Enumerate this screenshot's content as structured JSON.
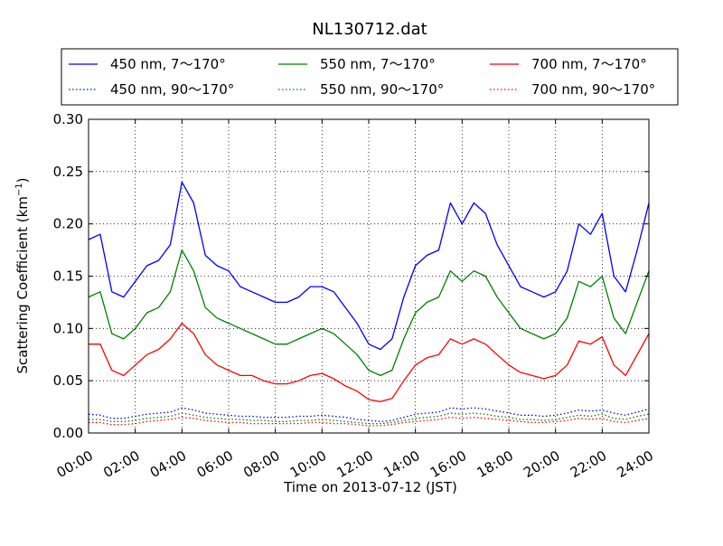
{
  "chart_data": {
    "type": "line",
    "title": "NL130712.dat",
    "xlabel": "Time on 2013-07-12 (JST)",
    "ylabel": "Scattering Coefficient (km",
    "ylabel_sup": "−1",
    "ylabel_end": ")",
    "xlim": [
      "00:00",
      "24:00"
    ],
    "ylim": [
      0.0,
      0.3
    ],
    "grid": true,
    "legend_position": "top",
    "xticks": [
      "00:00",
      "02:00",
      "04:00",
      "06:00",
      "08:00",
      "10:00",
      "12:00",
      "14:00",
      "16:00",
      "18:00",
      "20:00",
      "22:00",
      "24:00"
    ],
    "yticks": [
      "0.00",
      "0.05",
      "0.10",
      "0.15",
      "0.20",
      "0.25",
      "0.30"
    ],
    "x": [
      "00:00",
      "00:30",
      "01:00",
      "01:30",
      "02:00",
      "02:30",
      "03:00",
      "03:30",
      "04:00",
      "04:30",
      "05:00",
      "05:30",
      "06:00",
      "06:30",
      "07:00",
      "07:30",
      "08:00",
      "08:30",
      "09:00",
      "09:30",
      "10:00",
      "10:30",
      "11:00",
      "11:30",
      "12:00",
      "12:30",
      "13:00",
      "13:30",
      "14:00",
      "14:30",
      "15:00",
      "15:30",
      "16:00",
      "16:30",
      "17:00",
      "17:30",
      "18:00",
      "18:30",
      "19:00",
      "19:30",
      "20:00",
      "20:30",
      "21:00",
      "21:30",
      "22:00",
      "22:30",
      "23:00",
      "23:30",
      "24:00"
    ],
    "series": [
      {
        "name": "450 nm, 7～170°",
        "color": "#0000ff",
        "style": "solid",
        "values": [
          0.185,
          0.19,
          0.135,
          0.13,
          0.145,
          0.16,
          0.165,
          0.18,
          0.24,
          0.22,
          0.17,
          0.16,
          0.155,
          0.14,
          0.135,
          0.13,
          0.125,
          0.125,
          0.13,
          0.14,
          0.14,
          0.135,
          0.12,
          0.105,
          0.085,
          0.08,
          0.09,
          0.13,
          0.16,
          0.17,
          0.175,
          0.22,
          0.2,
          0.22,
          0.21,
          0.18,
          0.16,
          0.14,
          0.135,
          0.13,
          0.135,
          0.155,
          0.2,
          0.19,
          0.21,
          0.15,
          0.135,
          0.175,
          0.22
        ]
      },
      {
        "name": "550 nm, 7～170°",
        "color": "#008000",
        "style": "solid",
        "values": [
          0.13,
          0.135,
          0.095,
          0.09,
          0.1,
          0.115,
          0.12,
          0.135,
          0.175,
          0.155,
          0.12,
          0.11,
          0.105,
          0.1,
          0.095,
          0.09,
          0.085,
          0.085,
          0.09,
          0.095,
          0.1,
          0.095,
          0.085,
          0.075,
          0.06,
          0.055,
          0.06,
          0.09,
          0.115,
          0.125,
          0.13,
          0.155,
          0.145,
          0.155,
          0.15,
          0.13,
          0.115,
          0.1,
          0.095,
          0.09,
          0.095,
          0.11,
          0.145,
          0.14,
          0.15,
          0.11,
          0.095,
          0.125,
          0.155
        ]
      },
      {
        "name": "700 nm, 7～170°",
        "color": "#ff0000",
        "style": "solid",
        "values": [
          0.085,
          0.085,
          0.06,
          0.055,
          0.065,
          0.075,
          0.08,
          0.09,
          0.105,
          0.095,
          0.075,
          0.065,
          0.06,
          0.055,
          0.055,
          0.05,
          0.047,
          0.047,
          0.05,
          0.055,
          0.057,
          0.052,
          0.045,
          0.04,
          0.032,
          0.03,
          0.033,
          0.05,
          0.065,
          0.072,
          0.075,
          0.09,
          0.085,
          0.09,
          0.085,
          0.075,
          0.065,
          0.058,
          0.055,
          0.052,
          0.055,
          0.065,
          0.088,
          0.085,
          0.092,
          0.065,
          0.055,
          0.075,
          0.095
        ]
      },
      {
        "name": "450 nm, 90～170°",
        "color": "#0000ff",
        "style": "dotted",
        "values": [
          0.018,
          0.017,
          0.014,
          0.014,
          0.016,
          0.018,
          0.019,
          0.02,
          0.024,
          0.022,
          0.019,
          0.018,
          0.017,
          0.016,
          0.016,
          0.015,
          0.015,
          0.015,
          0.016,
          0.016,
          0.017,
          0.016,
          0.015,
          0.013,
          0.012,
          0.011,
          0.012,
          0.015,
          0.018,
          0.019,
          0.02,
          0.024,
          0.023,
          0.024,
          0.023,
          0.021,
          0.019,
          0.017,
          0.017,
          0.016,
          0.017,
          0.019,
          0.022,
          0.021,
          0.022,
          0.019,
          0.017,
          0.02,
          0.023
        ]
      },
      {
        "name": "550 nm, 90～170°",
        "color": "#008000",
        "style": "dotted",
        "values": [
          0.013,
          0.013,
          0.011,
          0.011,
          0.012,
          0.014,
          0.015,
          0.016,
          0.019,
          0.017,
          0.015,
          0.014,
          0.013,
          0.013,
          0.012,
          0.012,
          0.011,
          0.011,
          0.012,
          0.012,
          0.013,
          0.012,
          0.011,
          0.01,
          0.009,
          0.009,
          0.01,
          0.012,
          0.014,
          0.015,
          0.016,
          0.019,
          0.018,
          0.019,
          0.018,
          0.016,
          0.015,
          0.013,
          0.013,
          0.012,
          0.013,
          0.015,
          0.017,
          0.016,
          0.018,
          0.014,
          0.013,
          0.016,
          0.018
        ]
      },
      {
        "name": "700 nm, 90～170°",
        "color": "#ff0000",
        "style": "dotted",
        "values": [
          0.01,
          0.01,
          0.008,
          0.008,
          0.009,
          0.011,
          0.012,
          0.013,
          0.015,
          0.014,
          0.012,
          0.011,
          0.01,
          0.01,
          0.009,
          0.009,
          0.009,
          0.009,
          0.009,
          0.01,
          0.01,
          0.009,
          0.009,
          0.008,
          0.007,
          0.007,
          0.008,
          0.01,
          0.011,
          0.012,
          0.013,
          0.015,
          0.014,
          0.015,
          0.014,
          0.013,
          0.012,
          0.011,
          0.01,
          0.01,
          0.011,
          0.012,
          0.014,
          0.013,
          0.014,
          0.011,
          0.01,
          0.012,
          0.014
        ]
      }
    ]
  }
}
